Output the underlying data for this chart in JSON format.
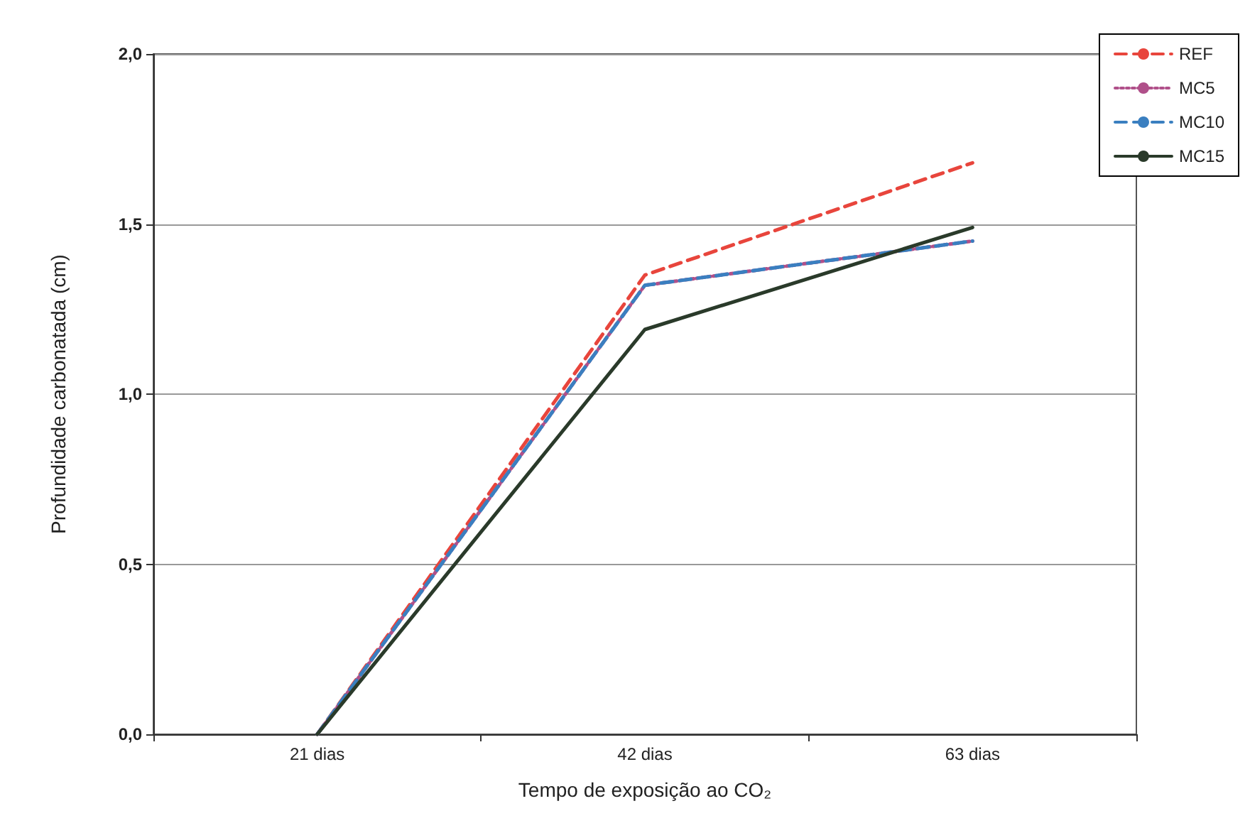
{
  "chart_data": {
    "type": "line",
    "xlabel": "Tempo de exposição ao CO₂",
    "ylabel": "Profundidade carbonatada (cm)",
    "categories": [
      "21 dias",
      "42 dias",
      "63 dias"
    ],
    "series": [
      {
        "name": "REF",
        "color": "#e8453c",
        "line_style": "dashed",
        "values": [
          0,
          1.35,
          1.68
        ]
      },
      {
        "name": "MC5",
        "color": "#b0508a",
        "line_style": "dotted",
        "values": [
          0,
          1.32,
          1.45
        ]
      },
      {
        "name": "MC10",
        "color": "#3a7fc0",
        "line_style": "dashed",
        "values": [
          0,
          1.32,
          1.45
        ]
      },
      {
        "name": "MC15",
        "color": "#2a3a2a",
        "line_style": "solid",
        "values": [
          0,
          1.19,
          1.49
        ]
      }
    ],
    "ylim": [
      0,
      2
    ],
    "yticks": [
      {
        "value": 0,
        "label": "0,0"
      },
      {
        "value": 0.5,
        "label": "0,5"
      },
      {
        "value": 1,
        "label": "1,0"
      },
      {
        "value": 1.5,
        "label": "1,5"
      },
      {
        "value": 2,
        "label": "2,0"
      }
    ],
    "grid": "y",
    "legend": "top right",
    "marker": "none"
  }
}
